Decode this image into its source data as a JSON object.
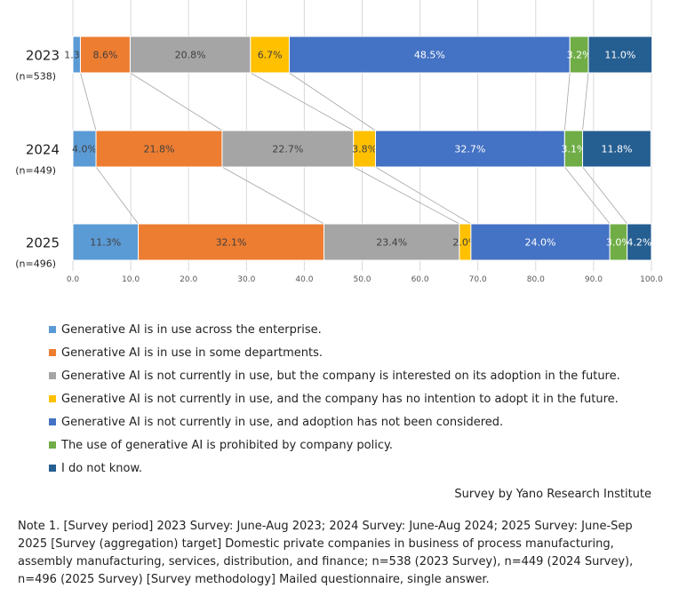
{
  "chart_data": {
    "type": "bar",
    "orientation": "horizontal-stacked-100",
    "categories": [
      "2023",
      "2024",
      "2025"
    ],
    "category_sublabels": [
      "(n=538)",
      "(n=449)",
      "(n=496)"
    ],
    "xlim": [
      0,
      100
    ],
    "xticks": [
      "0.0",
      "10.0",
      "20.0",
      "30.0",
      "40.0",
      "50.0",
      "60.0",
      "70.0",
      "80.0",
      "90.0",
      "100.0"
    ],
    "grid": true,
    "legend_position": "bottom",
    "series": [
      {
        "name": "Generative AI is in use across the enterprise.",
        "color": "#5B9BD5",
        "values": [
          1.3,
          4.0,
          11.3
        ],
        "labels": [
          "1.3%",
          "4.0%",
          "11.3%"
        ],
        "label_color": "#404040"
      },
      {
        "name": "Generative AI is in use in some departments.",
        "color": "#ED7D31",
        "values": [
          8.6,
          21.8,
          32.1
        ],
        "labels": [
          "8.6%",
          "21.8%",
          "32.1%"
        ],
        "label_color": "#404040"
      },
      {
        "name": "Generative AI is not currently in use, but the company is interested on its adoption in the future.",
        "color": "#A5A5A5",
        "values": [
          20.8,
          22.7,
          23.4
        ],
        "labels": [
          "20.8%",
          "22.7%",
          "23.4%"
        ],
        "label_color": "#404040"
      },
      {
        "name": "Generative AI is not currently in use, and the company has no intention to adopt it in the future.",
        "color": "#FFC000",
        "values": [
          6.7,
          3.8,
          2.0
        ],
        "labels": [
          "6.7%",
          "3.8%",
          "2.0%"
        ],
        "label_color": "#404040"
      },
      {
        "name": "Generative AI is not currently in use, and adoption has not been considered.",
        "color": "#4472C4",
        "values": [
          48.5,
          32.7,
          24.0
        ],
        "labels": [
          "48.5%",
          "32.7%",
          "24.0%"
        ],
        "label_color": "#ffffff"
      },
      {
        "name": "The use of generative AI is prohibited by company policy.",
        "color": "#70AD47",
        "values": [
          3.2,
          3.1,
          3.0
        ],
        "labels": [
          "3.2%",
          "3.1%",
          "3.0%"
        ],
        "label_color": "#ffffff"
      },
      {
        "name": "I do not know.",
        "color": "#255E91",
        "values": [
          11.0,
          11.8,
          4.2
        ],
        "labels": [
          "11.0%",
          "11.8%",
          "4.2%"
        ],
        "label_color": "#ffffff"
      }
    ]
  },
  "source": "Survey by Yano Research Institute",
  "note": "Note 1. [Survey period] 2023 Survey: June-Aug 2023; 2024 Survey: June-Aug 2024; 2025 Survey: June-Sep 2025 [Survey (aggregation) target] Domestic private companies in business of process manufacturing, assembly manufacturing, services, distribution, and finance; n=538 (2023 Survey), n=449 (2024 Survey), n=496 (2025 Survey) [Survey methodology] Mailed questionnaire, single answer."
}
